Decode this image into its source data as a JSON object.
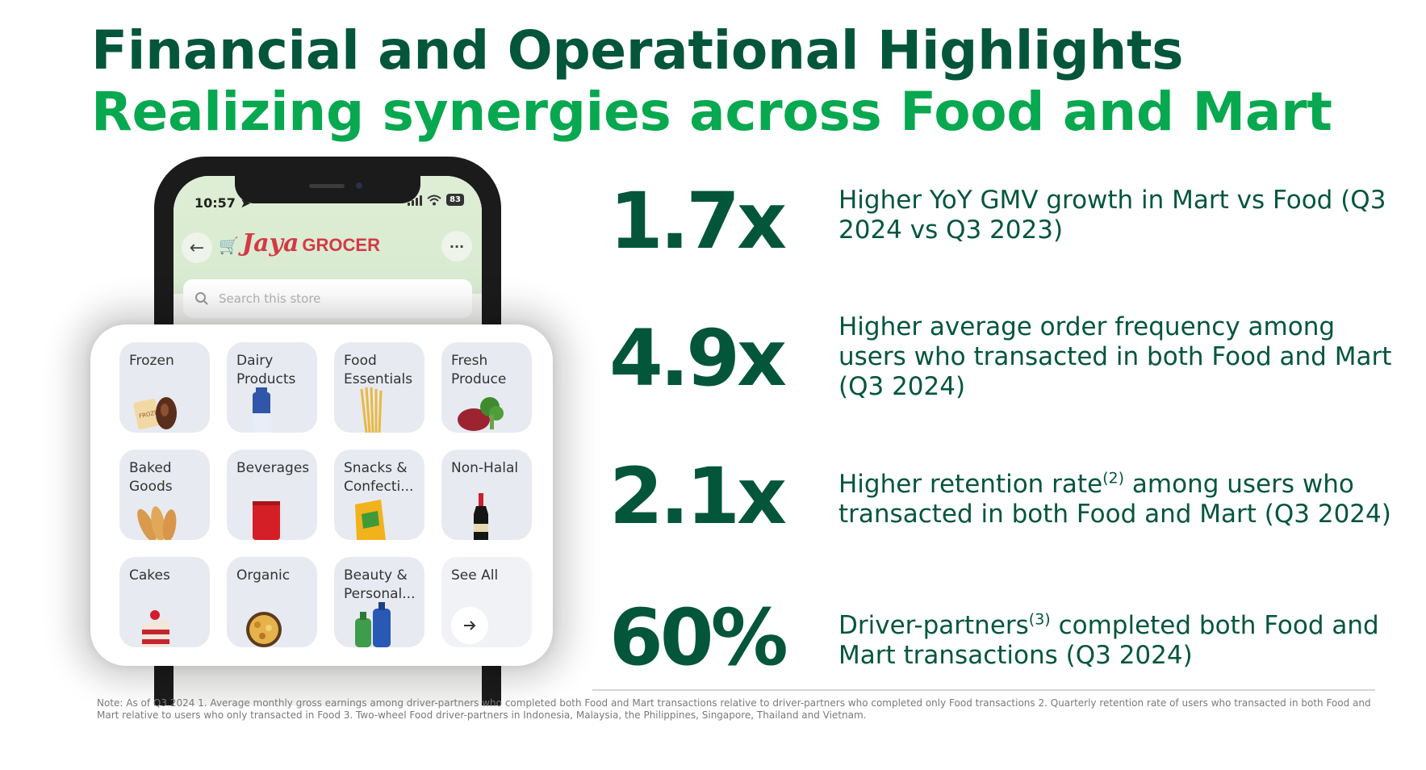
{
  "title": "Financial and Operational Highlights",
  "subtitle": "Realizing synergies across Food and Mart",
  "phone": {
    "time": "10:57",
    "battery": "83",
    "brand_name": "Jaya",
    "brand_suffix": "GROCER",
    "search_placeholder": "Search this store",
    "categories": [
      {
        "label": "Frozen",
        "icon": "frozen-food-icon"
      },
      {
        "label": "Dairy\nProducts",
        "icon": "milk-icon"
      },
      {
        "label": "Food\nEssentials",
        "icon": "pasta-icon"
      },
      {
        "label": "Fresh\nProduce",
        "icon": "vegetables-icon"
      },
      {
        "label": "Baked\nGoods",
        "icon": "bread-icon"
      },
      {
        "label": "Beverages",
        "icon": "can-icon"
      },
      {
        "label": "Snacks &\nConfecti...",
        "icon": "snack-bag-icon"
      },
      {
        "label": "Non-Halal",
        "icon": "wine-bottle-icon"
      },
      {
        "label": "Cakes",
        "icon": "cake-icon"
      },
      {
        "label": "Organic",
        "icon": "cereal-bowl-icon"
      },
      {
        "label": "Beauty &\nPersonal...",
        "icon": "shampoo-bottle-icon"
      },
      {
        "label": "See All",
        "icon": "arrow-right-icon"
      }
    ]
  },
  "stats": [
    {
      "value": "1.7x",
      "text": "Higher YoY GMV growth in Mart vs Food (Q3 2024 vs Q3 2023)"
    },
    {
      "value": "4.9x",
      "text": "Higher average order frequency among users who transacted in both Food and Mart (Q3 2024)"
    },
    {
      "value": "2.1x",
      "text_before": "Higher retention rate",
      "sup": "(2)",
      "text_after": " among users who transacted in both Food and Mart (Q3 2024)"
    },
    {
      "value": "60%",
      "text_before": "Driver-partners",
      "sup": "(3)",
      "text_after": " completed both Food and Mart transactions (Q3 2024)"
    }
  ],
  "footnote": "Note: As of Q3 2024 1. Average monthly gross earnings among driver-partners who completed both Food and Mart transactions relative to driver-partners who completed only Food transactions 2. Quarterly retention rate of users who transacted in both Food and Mart relative to users who only transacted in Food 3. Two-wheel Food driver-partners in Indonesia, Malaysia, the Philippines, Singapore, Thailand and Vietnam.",
  "colors": {
    "primary_dark_green": "#04563b",
    "accent_green": "#07a84f",
    "brand_red": "#d33a45",
    "tile_bg": "#e7eaf0"
  }
}
